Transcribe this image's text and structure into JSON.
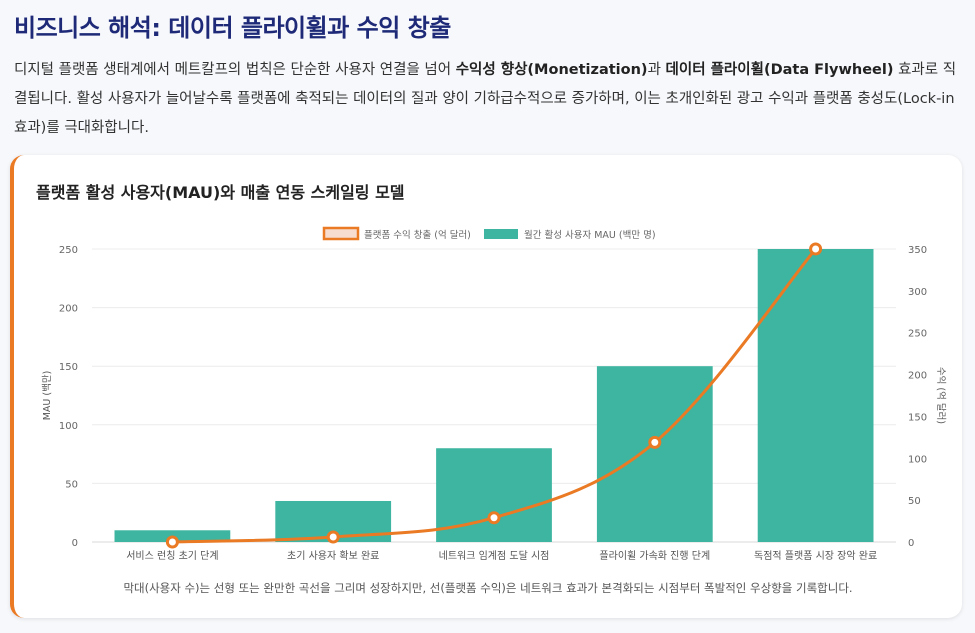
{
  "header": {
    "title": "비즈니스 해석: 데이터 플라이휠과 수익 창출",
    "intro_1": "디지털 플랫폼 생태계에서 메트칼프의 법칙은 단순한 사용자 연결을 넘어 ",
    "intro_b1": "수익성 향상(Monetization)",
    "intro_2": "과 ",
    "intro_b2": "데이터 플라이휠(Data Flywheel)",
    "intro_3": " 효과로 직결됩니다. 활성 사용자가 늘어날수록 플랫폼에 축적되는 데이터의 질과 양이 기하급수적으로 증가하며, 이는 초개인화된 광고 수익과 플랫폼 충성도(Lock-in 효과)를 극대화합니다."
  },
  "card": {
    "title": "플랫폼 활성 사용자(MAU)와 매출 연동 스케일링 모델",
    "caption": "막대(사용자 수)는 선형 또는 완만한 곡선을 그리며 성장하지만, 선(플랫폼 수익)은 네트워크 효과가 본격화되는 시점부터 폭발적인 우상향을 기록합니다."
  },
  "chart_data": {
    "type": "bar",
    "categories": [
      "서비스 런칭 초기 단계",
      "초기 사용자 확보 완료",
      "네트워크 임계점 도달 시점",
      "플라이휠 가속화 진행 단계",
      "독점적 플랫폼 시장 장악 완료"
    ],
    "series": [
      {
        "name": "월간 활성 사용자 MAU (백만 명)",
        "type": "bar",
        "axis": "left",
        "values": [
          10,
          35,
          80,
          150,
          250
        ],
        "color": "#3db5a0"
      },
      {
        "name": "플랫폼 수익 창출 (억 달러)",
        "type": "line",
        "axis": "right",
        "values": [
          0,
          6,
          29,
          119,
          350
        ],
        "color": "#ea7a24"
      }
    ],
    "ylabel": "MAU (백만)",
    "y2label": "수익 (억 달러)",
    "ylim": [
      0,
      250
    ],
    "y2lim": [
      0,
      350
    ],
    "yticks": [
      0,
      50,
      100,
      150,
      200,
      250
    ],
    "y2ticks": [
      0,
      50,
      100,
      150,
      200,
      250,
      300,
      350
    ],
    "grid": true,
    "legend": "top-center"
  }
}
